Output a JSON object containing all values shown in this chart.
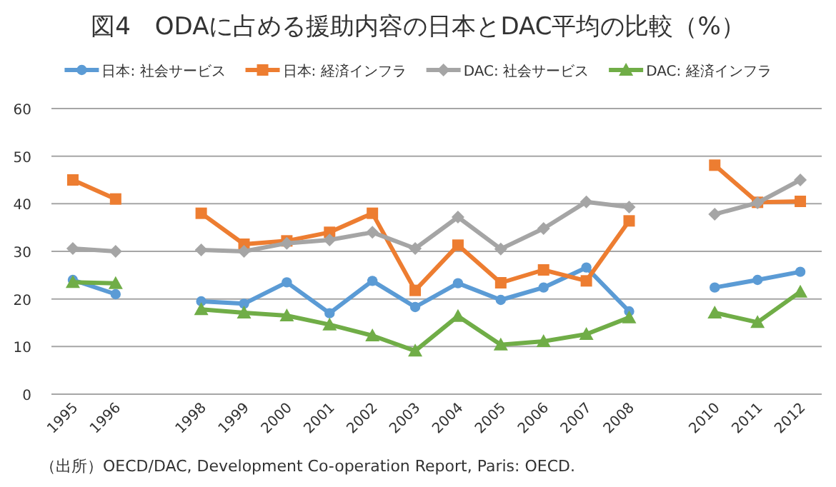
{
  "chart_data": {
    "type": "line",
    "title": "図4　ODAに占める援助内容の日本とDAC平均の比較（%）",
    "categories": [
      "1995",
      "1996",
      null,
      "1998",
      "1999",
      "2000",
      "2001",
      "2002",
      "2003",
      "2004",
      "2005",
      "2006",
      "2007",
      "2008",
      null,
      "2010",
      "2011",
      "2012"
    ],
    "series": [
      {
        "name": "日本: 社会サービス",
        "color": "#5b9bd5",
        "marker": "circle",
        "values": [
          24,
          21,
          null,
          19.5,
          19,
          23.5,
          17,
          23.8,
          18.3,
          23.3,
          19.8,
          22.4,
          26.6,
          17.4,
          null,
          22.4,
          24,
          25.7
        ]
      },
      {
        "name": "日本: 経済インフラ",
        "color": "#ed7d31",
        "marker": "square",
        "values": [
          45,
          41,
          null,
          38,
          31.5,
          32.2,
          34,
          38,
          21.8,
          31.3,
          23.4,
          26.1,
          23.8,
          36.4,
          null,
          48.1,
          40.3,
          40.5
        ]
      },
      {
        "name": "DAC: 社会サービス",
        "color": "#a5a5a5",
        "marker": "diamond",
        "values": [
          30.6,
          30,
          null,
          30.3,
          30,
          31.7,
          32.4,
          34,
          30.6,
          37.2,
          30.5,
          34.8,
          40.4,
          39.3,
          null,
          37.8,
          40.2,
          45
        ]
      },
      {
        "name": "DAC: 経済インフラ",
        "color": "#70ad47",
        "marker": "triangle",
        "values": [
          23.5,
          23.3,
          null,
          17.8,
          17.1,
          16.5,
          14.6,
          12.3,
          9.1,
          16.4,
          10.4,
          11.1,
          12.6,
          16.1,
          null,
          17.1,
          15.1,
          21.5
        ]
      }
    ],
    "ylim": [
      0,
      60
    ],
    "yticks": [
      0,
      10,
      20,
      30,
      40,
      50,
      60
    ],
    "grid": "y",
    "legend": "top",
    "line_style": "solid",
    "annotations": [
      "（出所）OECD/DAC, Development Co-operation Report, Paris: OECD."
    ]
  }
}
